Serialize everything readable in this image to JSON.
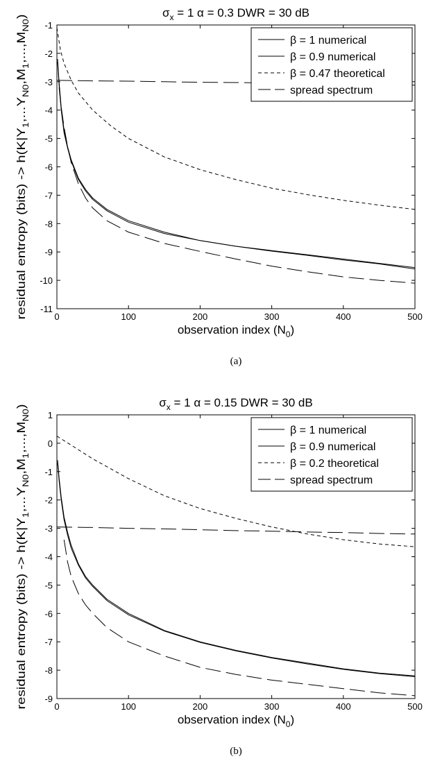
{
  "chart_data": [
    {
      "type": "line",
      "panel": "(a)",
      "title": "σx = 1   α = 0.3   DWR = 30 dB",
      "xlabel": "observation index (N0)",
      "ylabel": "residual entropy (bits) -> h(K|Y1,...YN0,M1,...,MN0)",
      "xlim": [
        0,
        500
      ],
      "ylim": [
        -11,
        -1
      ],
      "xticks": [
        "0",
        "100",
        "200",
        "300",
        "400",
        "500"
      ],
      "yticks": [
        "-1",
        "-2",
        "-3",
        "-4",
        "-5",
        "-6",
        "-7",
        "-8",
        "-9",
        "-10",
        "-11"
      ],
      "grid": false,
      "legend_position": "top-right",
      "series": [
        {
          "name": "β = 1  numerical",
          "style": "solid",
          "x": [
            1,
            3,
            6,
            10,
            15,
            20,
            30,
            40,
            50,
            70,
            100,
            150,
            200,
            250,
            300,
            350,
            400,
            450,
            500
          ],
          "y": [
            -2.2,
            -3.0,
            -3.9,
            -4.7,
            -5.3,
            -5.75,
            -6.4,
            -6.8,
            -7.1,
            -7.5,
            -7.9,
            -8.3,
            -8.6,
            -8.8,
            -8.95,
            -9.1,
            -9.25,
            -9.4,
            -9.55
          ]
        },
        {
          "name": "β = 0.9  numerical",
          "style": "solid",
          "x": [
            1,
            3,
            6,
            10,
            15,
            20,
            30,
            40,
            50,
            70,
            100,
            150,
            200,
            250,
            300,
            350,
            400,
            450,
            500
          ],
          "y": [
            -2.3,
            -3.1,
            -4.0,
            -4.8,
            -5.35,
            -5.8,
            -6.45,
            -6.85,
            -7.15,
            -7.55,
            -7.95,
            -8.35,
            -8.6,
            -8.8,
            -8.97,
            -9.12,
            -9.28,
            -9.42,
            -9.6
          ]
        },
        {
          "name": "β = 0.47  theoretical",
          "style": "dotted",
          "x": [
            0,
            5,
            10,
            20,
            30,
            50,
            75,
            100,
            150,
            200,
            250,
            300,
            350,
            400,
            450,
            500
          ],
          "y": [
            -1.1,
            -1.9,
            -2.35,
            -2.95,
            -3.4,
            -4.0,
            -4.55,
            -5.0,
            -5.65,
            -6.1,
            -6.45,
            -6.75,
            -6.98,
            -7.18,
            -7.35,
            -7.5
          ]
        },
        {
          "name": "spread spectrum",
          "style": "dashed",
          "x": [
            0,
            50,
            100,
            150,
            200,
            250,
            300,
            350,
            400,
            450,
            500
          ],
          "y": [
            -2.95,
            -2.97,
            -2.98,
            -3.0,
            -3.02,
            -3.03,
            -3.05,
            -3.06,
            -3.08,
            -3.1,
            -3.12
          ]
        },
        {
          "name": "",
          "style": "dashed",
          "x": [
            3,
            6,
            10,
            15,
            20,
            30,
            40,
            50,
            70,
            100,
            150,
            200,
            250,
            300,
            350,
            400,
            450,
            500
          ],
          "y": [
            -3.2,
            -3.9,
            -4.6,
            -5.3,
            -5.85,
            -6.6,
            -7.1,
            -7.45,
            -7.9,
            -8.3,
            -8.7,
            -8.98,
            -9.25,
            -9.5,
            -9.7,
            -9.88,
            -10.0,
            -10.1
          ]
        }
      ]
    },
    {
      "type": "line",
      "panel": "(b)",
      "title": "σx = 1   α = 0.15   DWR = 30 dB",
      "xlabel": "observation index (N0)",
      "ylabel": "residual entropy (bits) -> h(K|Y1,...YN0,M1,...,MN0)",
      "xlim": [
        0,
        500
      ],
      "ylim": [
        -9,
        1
      ],
      "xticks": [
        "0",
        "100",
        "200",
        "300",
        "400",
        "500"
      ],
      "yticks": [
        "1",
        "0",
        "-1",
        "-2",
        "-3",
        "-4",
        "-5",
        "-6",
        "-7",
        "-8",
        "-9"
      ],
      "grid": false,
      "legend_position": "top-right",
      "series": [
        {
          "name": "β = 1  numerical",
          "style": "solid",
          "x": [
            1,
            3,
            6,
            10,
            15,
            20,
            30,
            40,
            50,
            70,
            100,
            150,
            200,
            250,
            300,
            350,
            400,
            450,
            500
          ],
          "y": [
            -0.6,
            -1.2,
            -1.9,
            -2.6,
            -3.15,
            -3.6,
            -4.25,
            -4.7,
            -5.0,
            -5.5,
            -6.0,
            -6.6,
            -7.0,
            -7.3,
            -7.55,
            -7.75,
            -7.95,
            -8.1,
            -8.2
          ]
        },
        {
          "name": "β = 0.9  numerical",
          "style": "solid",
          "x": [
            1,
            3,
            6,
            10,
            15,
            20,
            30,
            40,
            50,
            70,
            100,
            150,
            200,
            250,
            300,
            350,
            400,
            450,
            500
          ],
          "y": [
            -0.7,
            -1.3,
            -2.0,
            -2.7,
            -3.25,
            -3.7,
            -4.3,
            -4.75,
            -5.05,
            -5.55,
            -6.05,
            -6.62,
            -7.02,
            -7.32,
            -7.57,
            -7.78,
            -7.97,
            -8.12,
            -8.23
          ]
        },
        {
          "name": "β = 0.2  theoretical",
          "style": "dotted",
          "x": [
            0,
            25,
            50,
            75,
            100,
            150,
            200,
            250,
            300,
            350,
            400,
            450,
            500
          ],
          "y": [
            0.25,
            -0.15,
            -0.55,
            -0.9,
            -1.25,
            -1.85,
            -2.3,
            -2.65,
            -2.95,
            -3.2,
            -3.4,
            -3.55,
            -3.65
          ]
        },
        {
          "name": "spread spectrum",
          "style": "dashed",
          "x": [
            0,
            50,
            100,
            150,
            200,
            250,
            300,
            350,
            400,
            450,
            500
          ],
          "y": [
            -2.95,
            -2.97,
            -3.0,
            -3.02,
            -3.05,
            -3.08,
            -3.1,
            -3.13,
            -3.15,
            -3.18,
            -3.2
          ]
        },
        {
          "name": "",
          "style": "dashed",
          "x": [
            10,
            15,
            20,
            30,
            40,
            50,
            70,
            100,
            150,
            200,
            250,
            300,
            350,
            400,
            450,
            500
          ],
          "y": [
            -3.4,
            -4.2,
            -4.7,
            -5.3,
            -5.7,
            -6.0,
            -6.5,
            -7.0,
            -7.5,
            -7.9,
            -8.15,
            -8.35,
            -8.5,
            -8.65,
            -8.8,
            -8.9
          ]
        }
      ]
    }
  ],
  "captions": [
    "(a)",
    "(b)"
  ],
  "colors": {
    "line": "#000000",
    "background": "#ffffff"
  }
}
